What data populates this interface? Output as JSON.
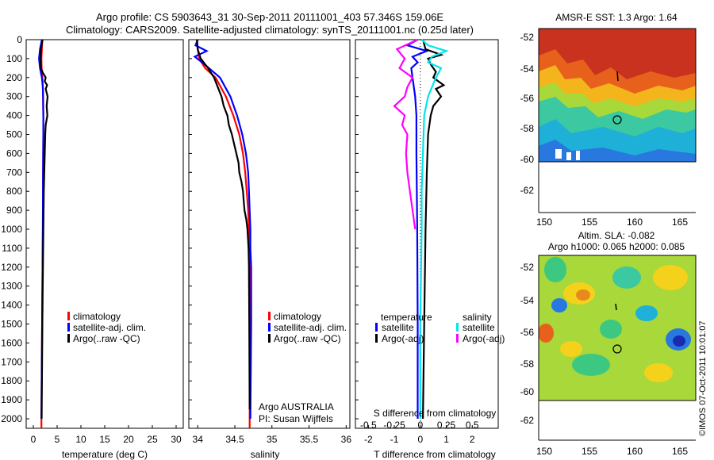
{
  "header": {
    "line1": "Argo profile: CS 5903643_31 30-Sep-2011 20111001_403 57.346S 159.06E",
    "line2": "Climatology: CARS2009. Satellite-adjusted climatology: synTS_20111001.nc (0.25d later)"
  },
  "depth_ticks": [
    "0",
    "100",
    "200",
    "300",
    "400",
    "500",
    "600",
    "700",
    "800",
    "900",
    "1000",
    "1100",
    "1200",
    "1300",
    "1400",
    "1500",
    "1600",
    "1700",
    "1800",
    "1900",
    "2000"
  ],
  "colors": {
    "climatology": "#ff0000",
    "satellite": "#0000ff",
    "argo": "#000000",
    "sat_sal": "#00e5ee",
    "argo_sal": "#ff00ff"
  },
  "legend1": {
    "climatology": "climatology",
    "satellite": "satellite-adj. clim.",
    "argo": "Argo(..raw -QC)"
  },
  "legend3": {
    "temp_head": "temperature",
    "sal_head": "salinity",
    "sat": "satellite",
    "argo": "Argo(-adj)"
  },
  "credit": {
    "line1": "Argo AUSTRALIA",
    "line2": "PI: Susan Wijffels"
  },
  "footer_note": "©IMOS 07-Oct-2011 10:01:07",
  "map1": {
    "title": "AMSR-E SST: 1.3 Argo: 1.64",
    "xticks": [
      "150",
      "155",
      "160",
      "165"
    ],
    "yticks": [
      "-52",
      "-54",
      "-56",
      "-58",
      "-60",
      "-62"
    ]
  },
  "map2": {
    "title1": "Altim. SLA: -0.082",
    "title2": "Argo h1000: 0.065 h2000: 0.085",
    "xticks": [
      "150",
      "155",
      "160",
      "165"
    ],
    "yticks": [
      "-52",
      "-54",
      "-56",
      "-58",
      "-60",
      "-62"
    ]
  },
  "chart_data": [
    {
      "type": "line",
      "xlabel": "temperature (deg C)",
      "xticks": [
        "0",
        "5",
        "10",
        "15",
        "20",
        "25",
        "30"
      ],
      "xlim": [
        -1.5,
        31.5
      ],
      "ylim": [
        2050,
        0
      ],
      "series": [
        {
          "name": "climatology",
          "color": "#ff0000",
          "depth": [
            0,
            50,
            100,
            150,
            200,
            250,
            300,
            400,
            500,
            700,
            1000,
            1500,
            2000,
            2050
          ],
          "values": [
            1.9,
            1.8,
            1.7,
            1.75,
            1.9,
            2.0,
            2.05,
            2.1,
            2.1,
            2.05,
            2.0,
            1.85,
            1.7,
            1.7
          ]
        },
        {
          "name": "satellite-adj. clim.",
          "color": "#0000ff",
          "depth": [
            0,
            50,
            100,
            150,
            200,
            250,
            300,
            400,
            500,
            700,
            1000,
            1500,
            2000
          ],
          "values": [
            1.8,
            1.4,
            1.2,
            1.4,
            1.8,
            2.0,
            2.05,
            2.1,
            2.1,
            2.05,
            2.0,
            1.85,
            1.7
          ]
        },
        {
          "name": "Argo(..raw -QC)",
          "color": "#000000",
          "depth": [
            0,
            50,
            100,
            150,
            175,
            200,
            220,
            240,
            260,
            300,
            350,
            400,
            450,
            500,
            600,
            800,
            1000,
            1500,
            2000
          ],
          "values": [
            1.95,
            1.6,
            1.55,
            1.6,
            2.0,
            2.6,
            2.4,
            2.9,
            2.6,
            3.0,
            2.8,
            2.95,
            2.6,
            2.5,
            2.4,
            2.2,
            2.1,
            1.9,
            1.75
          ]
        }
      ]
    },
    {
      "type": "line",
      "xlabel": "salinity",
      "xticks": [
        "34",
        "34.5",
        "35",
        "35.5",
        "36"
      ],
      "xlim": [
        33.88,
        36.05
      ],
      "ylim": [
        2050,
        0
      ],
      "series": [
        {
          "name": "climatology",
          "color": "#ff0000",
          "depth": [
            0,
            50,
            100,
            150,
            200,
            300,
            400,
            500,
            600,
            700,
            800,
            900,
            1000,
            1100,
            1200,
            1500,
            2000,
            2050
          ],
          "values": [
            33.99,
            34.0,
            34.02,
            34.1,
            34.24,
            34.38,
            34.48,
            34.56,
            34.61,
            34.64,
            34.66,
            34.68,
            34.69,
            34.695,
            34.7,
            34.7,
            34.7,
            34.7
          ]
        },
        {
          "name": "satellite-adj. clim.",
          "color": "#0000ff",
          "depth": [
            0,
            30,
            60,
            90,
            120,
            150,
            200,
            300,
            400,
            500,
            600,
            700,
            800,
            900,
            1000,
            1100,
            1200,
            1500,
            2000
          ],
          "values": [
            34.0,
            33.97,
            34.12,
            33.96,
            34.06,
            34.15,
            34.3,
            34.44,
            34.53,
            34.6,
            34.65,
            34.68,
            34.69,
            34.7,
            34.71,
            34.71,
            34.72,
            34.72,
            34.71
          ]
        },
        {
          "name": "Argo(..raw -QC)",
          "color": "#000000",
          "depth": [
            0,
            50,
            100,
            150,
            200,
            250,
            300,
            350,
            400,
            450,
            500,
            550,
            600,
            650,
            700,
            750,
            800,
            850,
            900,
            950,
            1000,
            1100,
            1200,
            1500,
            1950
          ],
          "values": [
            33.99,
            34.0,
            34.04,
            34.14,
            34.22,
            34.27,
            34.32,
            34.35,
            34.4,
            34.42,
            34.46,
            34.49,
            34.52,
            34.55,
            34.56,
            34.59,
            34.61,
            34.62,
            34.63,
            34.655,
            34.67,
            34.685,
            34.69,
            34.695,
            34.7
          ]
        }
      ]
    },
    {
      "type": "line",
      "xlabel": "T difference from climatology",
      "xticks": [
        "-2",
        "-1",
        "0",
        "1",
        "2"
      ],
      "top_label": "S difference from climatology",
      "top_ticks": [
        "-0.5",
        "-0.25",
        "0",
        "0.25",
        "0.5"
      ],
      "xlim": [
        -2.5,
        3.0
      ],
      "ylim": [
        2050,
        0
      ],
      "series": [
        {
          "name": "temperature satellite",
          "color": "#0000ff",
          "depth": [
            0,
            30,
            60,
            90,
            120,
            150,
            200,
            300,
            400,
            600,
            1000,
            1500,
            2000
          ],
          "values": [
            -0.1,
            -0.5,
            0.25,
            -0.3,
            -0.1,
            -0.35,
            -0.3,
            -0.2,
            -0.15,
            -0.15,
            -0.12,
            -0.1,
            -0.1
          ]
        },
        {
          "name": "temperature Argo(-adj)",
          "color": "#000000",
          "depth": [
            0,
            50,
            80,
            100,
            130,
            150,
            170,
            200,
            220,
            240,
            260,
            300,
            350,
            400,
            500,
            700,
            1000,
            1500,
            2000
          ],
          "values": [
            0.1,
            0.2,
            0.8,
            0.3,
            0.4,
            0.5,
            0.6,
            0.5,
            0.7,
            0.9,
            0.6,
            0.8,
            0.5,
            0.4,
            0.3,
            0.25,
            0.2,
            0.15,
            0.1
          ]
        },
        {
          "name": "salinity satellite",
          "color": "#00e5ee",
          "depth": [
            0,
            30,
            60,
            90,
            120,
            150,
            200,
            300,
            400,
            600,
            800,
            1000,
            1500,
            2000
          ],
          "values": [
            0.05,
            0.3,
            1.0,
            0.45,
            0.3,
            0.8,
            0.6,
            0.3,
            0.15,
            0.1,
            0.05,
            0.05,
            0.0,
            0.0
          ]
        },
        {
          "name": "salinity Argo(-adj)",
          "color": "#ff00ff",
          "depth": [
            0,
            50,
            100,
            150,
            200,
            250,
            300,
            350,
            400,
            450,
            500,
            600,
            700,
            800,
            900,
            1000
          ],
          "values": [
            -0.1,
            -0.9,
            -0.6,
            -0.8,
            -0.3,
            -0.5,
            -0.6,
            -1.0,
            -0.6,
            -0.7,
            -0.5,
            -0.55,
            -0.5,
            -0.4,
            -0.3,
            -0.2
          ]
        }
      ]
    }
  ]
}
